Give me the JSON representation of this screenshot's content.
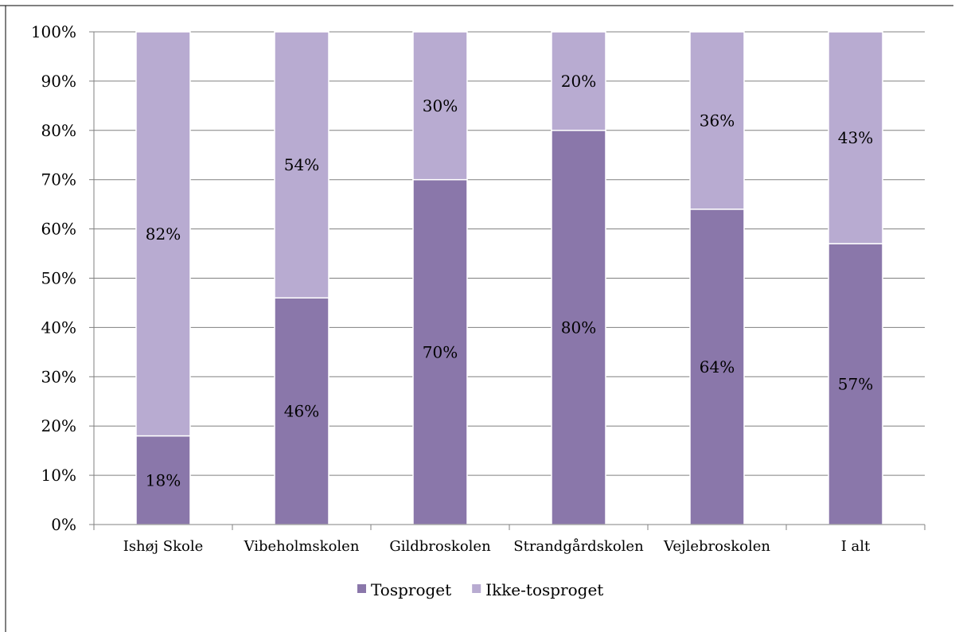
{
  "chart_data": {
    "type": "bar",
    "stacked": true,
    "categories": [
      "Ishøj Skole",
      "Vibeholmskolen",
      "Gildbroskolen",
      "Strandgårdskolen",
      "Vejlebroskolen",
      "I alt"
    ],
    "series": [
      {
        "name": "Tosproget",
        "color": "#8a77aa",
        "values": [
          18,
          46,
          70,
          80,
          64,
          57
        ],
        "labels": [
          "18%",
          "46%",
          "70%",
          "80%",
          "64%",
          "57%"
        ]
      },
      {
        "name": "Ikke-tosproget",
        "color": "#b8abd1",
        "values": [
          82,
          54,
          30,
          20,
          36,
          43
        ],
        "labels": [
          "82%",
          "54%",
          "30%",
          "20%",
          "36%",
          "43%"
        ]
      }
    ],
    "ylim": [
      0,
      100
    ],
    "yticks": [
      "0%",
      "10%",
      "20%",
      "30%",
      "40%",
      "50%",
      "60%",
      "70%",
      "80%",
      "90%",
      "100%"
    ],
    "grid": true,
    "legend_position": "bottom",
    "title": "",
    "xlabel": "",
    "ylabel": ""
  }
}
